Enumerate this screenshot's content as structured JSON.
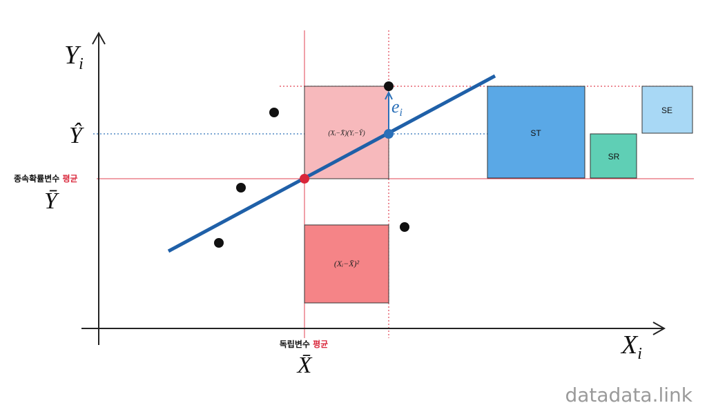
{
  "y_axis_label": {
    "main": "Y",
    "sub": "i"
  },
  "x_axis_label": {
    "main": "X",
    "sub": "i"
  },
  "y_hat_label": "Ŷ",
  "y_mean": {
    "caption": "종속확률변수",
    "caption_highlight": "평균",
    "symbol": "Ȳ"
  },
  "x_mean": {
    "caption": "독립변수",
    "caption_highlight": "평균",
    "symbol": "X̄"
  },
  "residual_label": {
    "main": "e",
    "sub": "i"
  },
  "boxes": {
    "covariance": "(Xᵢ−X̄)(Yᵢ−Ȳ)",
    "variance": "(Xᵢ−X̄)²",
    "st": "ST",
    "sr": "SR",
    "se": "SE"
  },
  "watermark": "datadata.link"
}
